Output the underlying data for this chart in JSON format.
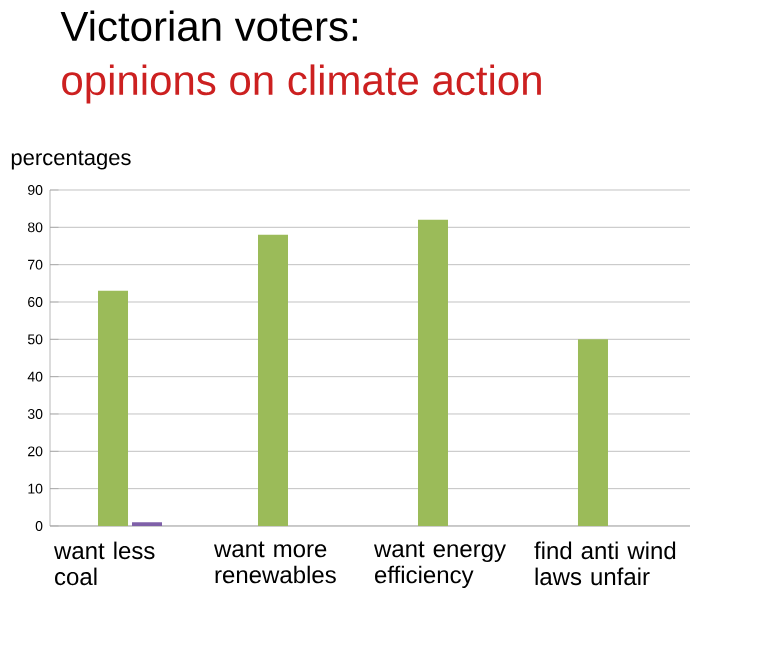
{
  "chart_data": {
    "type": "bar",
    "title": "Victorian  voters:",
    "subtitle": "opinions on climate action",
    "ylabel": "percentages",
    "categories": [
      "want less coal",
      "want more renewables",
      "want energy efficiency",
      "find anti wind laws unfair"
    ],
    "series": [
      {
        "color": "#9bbb59",
        "values": [
          63,
          78,
          82,
          50
        ]
      },
      {
        "color": "#7f60a8",
        "values": [
          1,
          null,
          null,
          null
        ]
      }
    ],
    "ylim": [
      0,
      90
    ],
    "yticks": [
      0,
      10,
      20,
      30,
      40,
      50,
      60,
      70,
      80,
      90
    ],
    "grid": "y"
  }
}
